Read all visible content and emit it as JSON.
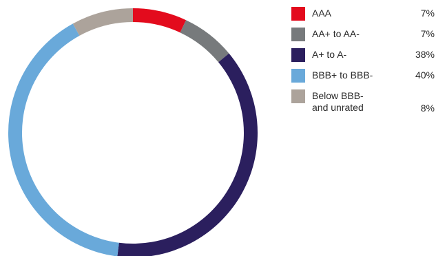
{
  "chart_data": {
    "type": "pie",
    "donut": true,
    "legend_position": "right",
    "categories": [
      "AAA",
      "AA+ to AA-",
      "A+ to A-",
      "BBB+ to BBB-",
      "Below BBB-\nand unrated"
    ],
    "values": [
      7,
      7,
      38,
      40,
      8
    ],
    "value_labels": [
      "7%",
      "7%",
      "38%",
      "40%",
      "8%"
    ],
    "colors": [
      "#e30b1d",
      "#777a7c",
      "#2b1f5e",
      "#69a9da",
      "#aca39b"
    ]
  }
}
